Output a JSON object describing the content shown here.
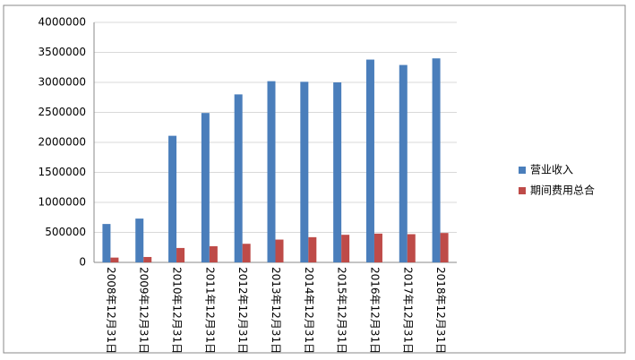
{
  "chart_data": {
    "type": "bar",
    "categories": [
      "2008年12月31日",
      "2009年12月31日",
      "2010年12月31日",
      "2011年12月31日",
      "2012年12月31日",
      "2013年12月31日",
      "2014年12月31日",
      "2015年12月31日",
      "2016年12月31日",
      "2017年12月31日",
      "2018年12月31日"
    ],
    "series": [
      {
        "name": "营业收入",
        "color": "#4a7ebb",
        "values": [
          640000,
          730000,
          2110000,
          2490000,
          2800000,
          3020000,
          3010000,
          3000000,
          3380000,
          3290000,
          3400000
        ]
      },
      {
        "name": "期间费用总合",
        "color": "#be4b48",
        "values": [
          80000,
          90000,
          240000,
          270000,
          310000,
          380000,
          420000,
          460000,
          480000,
          470000,
          490000
        ]
      }
    ],
    "ylim": [
      0,
      4000000
    ],
    "yticks": [
      0,
      500000,
      1000000,
      1500000,
      2000000,
      2500000,
      3000000,
      3500000,
      4000000
    ],
    "grid": true,
    "legend": "right"
  }
}
